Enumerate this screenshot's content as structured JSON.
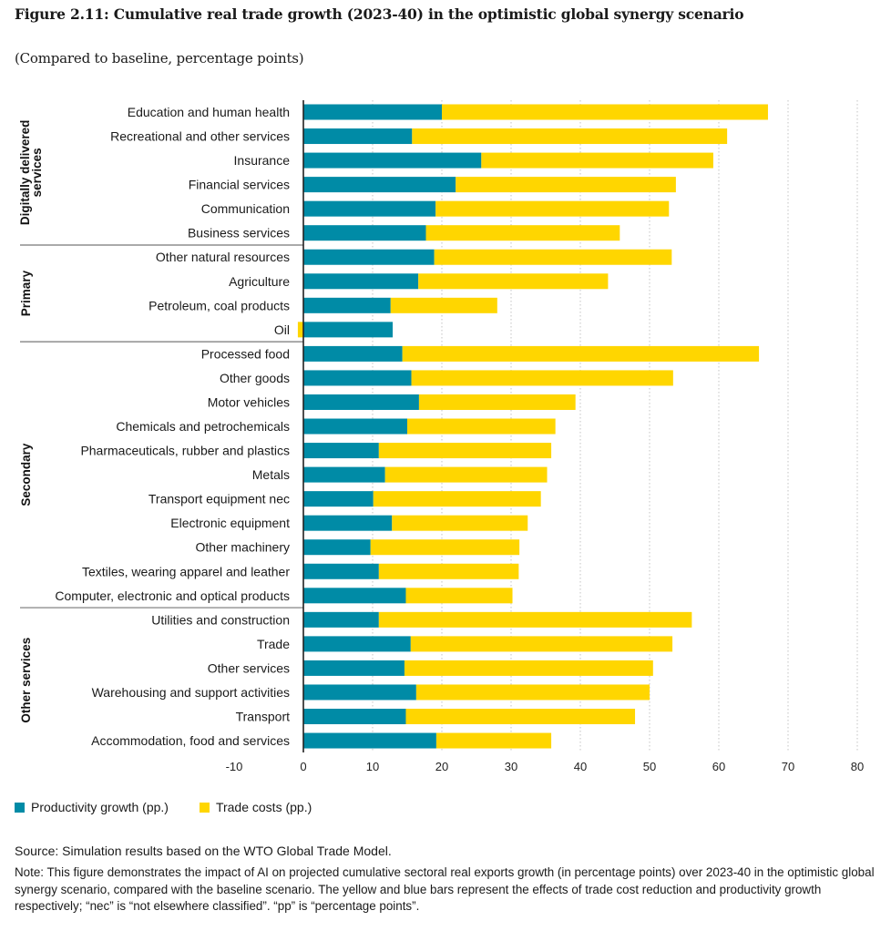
{
  "figure": {
    "title": "Figure 2.11: Cumulative real trade growth (2023-40) in the optimistic global synergy scenario",
    "subtitle": "(Compared to baseline, percentage points)",
    "source": "Source: Simulation results based on the WTO Global Trade Model.",
    "note": "Note: This figure demonstrates the impact of AI on projected cumulative sectoral real exports growth (in percentage points) over 2023-40 in the optimistic global synergy scenario, compared with the baseline scenario. The yellow and blue bars represent the effects of trade cost reduction and productivity growth respectively; “nec” is “not elsewhere classified”. “pp” is “percentage points”."
  },
  "colors": {
    "productivity": "#008BA6",
    "trade_costs": "#FFD600",
    "axis": "#222222",
    "divider": "#777777",
    "grid": "#b5b5b5"
  },
  "chart_data": {
    "type": "bar",
    "orientation": "horizontal",
    "stacked": true,
    "title": "Figure 2.11: Cumulative real trade growth (2023-40) in the optimistic global synergy scenario",
    "subtitle": "(Compared to baseline, percentage points)",
    "xlabel": "",
    "ylabel": "",
    "xlim": [
      -10,
      80
    ],
    "xticks": [
      -10,
      0,
      10,
      20,
      30,
      40,
      50,
      60,
      70,
      80
    ],
    "grid": "vertical dotted",
    "legend_position": "bottom-left",
    "groups": [
      {
        "name": "Digitally delivered services",
        "label_lines": [
          "Digitally delivered",
          "services"
        ],
        "start": 0,
        "end": 5
      },
      {
        "name": "Primary",
        "label_lines": [
          "Primary"
        ],
        "start": 6,
        "end": 9
      },
      {
        "name": "Secondary",
        "label_lines": [
          "Secondary"
        ],
        "start": 10,
        "end": 20
      },
      {
        "name": "Other services",
        "label_lines": [
          "Other services"
        ],
        "start": 21,
        "end": 26
      }
    ],
    "categories": [
      "Education and human health",
      "Recreational and other services",
      "Insurance",
      "Financial services",
      "Communication",
      "Business services",
      "Other natural resources",
      "Agriculture",
      "Petroleum, coal products",
      "Oil",
      "Processed food",
      "Other goods",
      "Motor vehicles",
      "Chemicals and petrochemicals",
      "Pharmaceuticals, rubber and plastics",
      "Metals",
      "Transport equipment nec",
      "Electronic equipment",
      "Other machinery",
      "Textiles, wearing apparel and leather",
      "Computer, electronic and optical products",
      "Utilities and construction",
      "Trade",
      "Other services",
      "Warehousing and support activities",
      "Transport",
      "Accommodation, food and services"
    ],
    "series": [
      {
        "name": "Productivity growth (pp.)",
        "key": "productivity",
        "values": [
          20.0,
          15.7,
          25.7,
          22.0,
          19.1,
          17.7,
          18.9,
          16.6,
          12.6,
          12.9,
          14.3,
          15.6,
          16.7,
          15.0,
          10.9,
          11.8,
          10.1,
          12.8,
          9.7,
          10.9,
          14.8,
          10.9,
          15.5,
          14.6,
          16.3,
          14.8,
          19.2
        ]
      },
      {
        "name": "Trade costs (pp.)",
        "key": "trade_costs",
        "values": [
          47.1,
          45.5,
          33.5,
          31.8,
          33.7,
          28.0,
          34.3,
          27.4,
          15.4,
          -0.8,
          51.5,
          37.8,
          22.6,
          21.4,
          24.9,
          23.4,
          24.2,
          19.6,
          21.5,
          20.2,
          15.4,
          45.2,
          37.8,
          35.9,
          33.7,
          33.1,
          16.6
        ]
      }
    ]
  }
}
